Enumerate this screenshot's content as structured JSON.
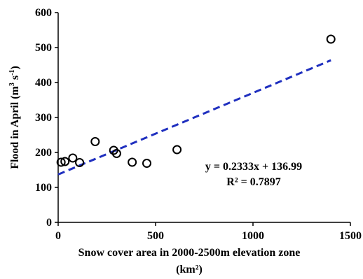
{
  "chart_data": {
    "type": "scatter",
    "xlabel": "Snow cover area in 2000-2500m elevation zone",
    "xlabel_unit": "(km²)",
    "ylabel_prefix": "Flood in April (m",
    "ylabel_sup1": "3",
    "ylabel_mid": " s",
    "ylabel_sup2": "-1",
    "ylabel_suffix": ")",
    "xlim": [
      0,
      1500
    ],
    "ylim": [
      0,
      600
    ],
    "xticks": [
      0,
      500,
      1000,
      1500
    ],
    "yticks": [
      0,
      100,
      200,
      300,
      400,
      500,
      600
    ],
    "grid": false,
    "series": [
      {
        "marker": "hollow-circle",
        "color": "#000000",
        "points": [
          {
            "x": 15,
            "y": 172
          },
          {
            "x": 35,
            "y": 174
          },
          {
            "x": 75,
            "y": 184
          },
          {
            "x": 110,
            "y": 171
          },
          {
            "x": 190,
            "y": 231
          },
          {
            "x": 285,
            "y": 206
          },
          {
            "x": 300,
            "y": 197
          },
          {
            "x": 380,
            "y": 172
          },
          {
            "x": 455,
            "y": 169
          },
          {
            "x": 610,
            "y": 208
          },
          {
            "x": 1400,
            "y": 524
          }
        ]
      }
    ],
    "trendline": {
      "slope": 0.2333,
      "intercept": 136.99,
      "x_range": [
        0,
        1400
      ],
      "color": "#1f2fbf",
      "style": "dashed"
    },
    "annotations": {
      "equation": "y = 0.2333x + 136.99",
      "r_squared": "R² = 0.7897"
    }
  }
}
